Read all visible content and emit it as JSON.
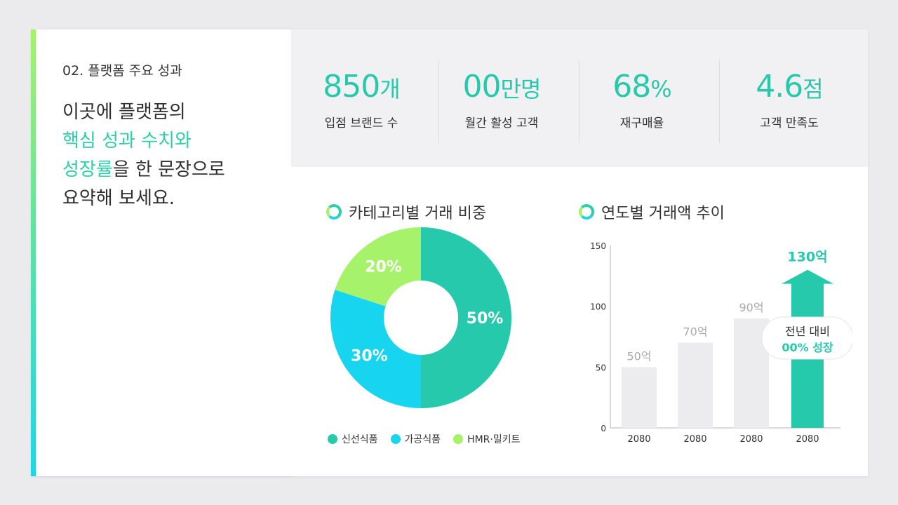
{
  "section_label": "02. 플랫폼 주요 성과",
  "headline": {
    "line1": "이곳에 플랫폼의",
    "line2": "핵심 성과 수치와",
    "line3_hl": "성장률",
    "line3_rest": "을 한 문장으로",
    "line4": "요약해 보세요."
  },
  "stats": [
    {
      "value": "850",
      "unit": "개",
      "label": "입점 브랜드 수"
    },
    {
      "value": "00",
      "unit": "만명",
      "label": "월간 활성 고객"
    },
    {
      "value": "68",
      "unit": "%",
      "label": "재구매율"
    },
    {
      "value": "4.6",
      "unit": "점",
      "label": "고객 만족도"
    }
  ],
  "donut_title": "카테고리별 거래 비중",
  "bar_title": "연도별 거래액 추이",
  "legend": [
    {
      "label": "신선식품",
      "color": "#27c9ad"
    },
    {
      "label": "가공식품",
      "color": "#17d5ef"
    },
    {
      "label": "HMR·밀키트",
      "color": "#a6f26b"
    }
  ],
  "callout": {
    "line1": "전년 대비",
    "line2": "00% 성장"
  },
  "colors": {
    "accent": "#27c9ad",
    "bar_gray": "#ecebee"
  },
  "chart_data": [
    {
      "type": "pie",
      "title": "카테고리별 거래 비중",
      "categories": [
        "신선식품",
        "가공식품",
        "HMR·밀키트"
      ],
      "values": [
        50,
        30,
        20
      ],
      "labels": [
        "50%",
        "30%",
        "20%"
      ],
      "donut": true
    },
    {
      "type": "bar",
      "title": "연도별 거래액 추이",
      "categories": [
        "2080",
        "2080",
        "2080",
        "2080"
      ],
      "values": [
        50,
        70,
        90,
        130
      ],
      "data_labels": [
        "50억",
        "70억",
        "90억",
        "130억"
      ],
      "yticks": [
        0,
        50,
        100,
        150
      ],
      "ylim": [
        0,
        150
      ]
    }
  ]
}
